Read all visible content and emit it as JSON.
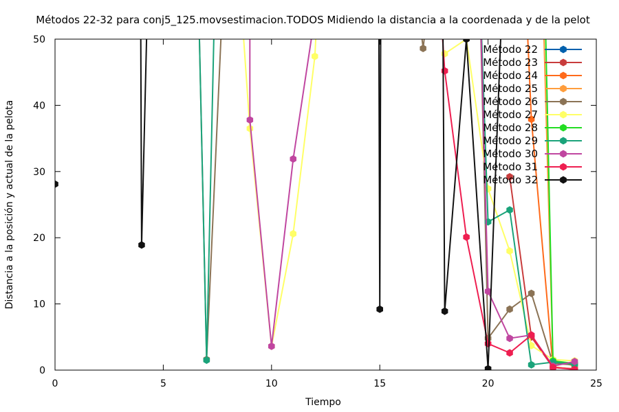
{
  "chart_data": {
    "type": "line",
    "title": "Métodos 22-32 para conj5_125.movsestimacion.TODOS Midiendo la distancia a la coordenada y de la pelot",
    "xlabel": "Tiempo",
    "ylabel": "Distancia a la posición y actual de la pelota",
    "xlim": [
      0,
      25
    ],
    "ylim": [
      0,
      50
    ],
    "xticks": [
      0,
      5,
      10,
      15,
      20,
      25
    ],
    "yticks": [
      0,
      10,
      20,
      30,
      40,
      50
    ],
    "grid": false,
    "legend_position": "top-right",
    "series": [
      {
        "name": "Método 22",
        "color": "#0060ad",
        "points": []
      },
      {
        "name": "Método 23",
        "color": "#c83c3c",
        "points": [
          [
            21,
            29.2
          ],
          [
            22,
            5.0
          ],
          [
            23,
            0.4
          ],
          [
            24,
            0.2
          ]
        ]
      },
      {
        "name": "Método 24",
        "color": "#ff6a1a",
        "points": [
          [
            21.7,
            60.0
          ],
          [
            22,
            37.9
          ],
          [
            23,
            0.5
          ],
          [
            24,
            0.1
          ]
        ]
      },
      {
        "name": "Método 25",
        "color": "#ff9d3c",
        "points": [
          [
            22.5,
            60.0
          ],
          [
            23,
            1.5
          ],
          [
            24,
            0.6
          ]
        ]
      },
      {
        "name": "Método 26",
        "color": "#8b7355",
        "points": [
          [
            6.6,
            60.0
          ],
          [
            7,
            1.6
          ],
          [
            7.8,
            60.0
          ],
          [
            null,
            null
          ],
          [
            16.6,
            60.0
          ],
          [
            17,
            48.6
          ],
          [
            17.4,
            60.0
          ],
          [
            null,
            null
          ],
          [
            19.6,
            60.0
          ],
          [
            20,
            4.8
          ],
          [
            21,
            9.2
          ],
          [
            22,
            11.6
          ],
          [
            23,
            1.0
          ],
          [
            24,
            0.8
          ]
        ]
      },
      {
        "name": "Método 27",
        "color": "#ffff66",
        "points": [
          [
            8.5,
            60.0
          ],
          [
            9,
            36.5
          ],
          [
            10,
            3.6
          ],
          [
            11,
            20.6
          ],
          [
            12,
            47.4
          ],
          [
            12.2,
            60.0
          ],
          [
            null,
            null
          ],
          [
            18,
            47.8
          ],
          [
            19,
            50.0
          ],
          [
            20,
            27.4
          ],
          [
            21,
            18.0
          ],
          [
            22,
            3.7
          ],
          [
            23,
            1.6
          ],
          [
            24,
            1.4
          ]
        ]
      },
      {
        "name": "Método 28",
        "color": "#22dd22",
        "points": [
          [
            22.6,
            60.0
          ],
          [
            23,
            1.4
          ],
          [
            24,
            1.0
          ]
        ]
      },
      {
        "name": "Método 29",
        "color": "#1aa37a",
        "points": [
          [
            6.6,
            60.0
          ],
          [
            7,
            1.5
          ],
          [
            7.4,
            60.0
          ],
          [
            null,
            null
          ],
          [
            19.6,
            60.0
          ],
          [
            20,
            22.4
          ],
          [
            21,
            24.2
          ],
          [
            22,
            0.8
          ],
          [
            23,
            1.2
          ],
          [
            24,
            0.9
          ]
        ]
      },
      {
        "name": "Método 30",
        "color": "#c046a0",
        "points": [
          [
            9,
            60.0
          ],
          [
            9,
            37.8
          ],
          [
            10,
            3.6
          ],
          [
            11,
            31.9
          ],
          [
            12.3,
            60.0
          ],
          [
            null,
            null
          ],
          [
            19.6,
            60.0
          ],
          [
            20,
            11.9
          ],
          [
            21,
            4.8
          ],
          [
            22,
            5.3
          ],
          [
            23,
            0.6
          ],
          [
            24,
            1.3
          ]
        ]
      },
      {
        "name": "Método 31",
        "color": "#ee1e50",
        "points": [
          [
            17.7,
            60.0
          ],
          [
            18,
            45.2
          ],
          [
            19,
            20.1
          ],
          [
            20,
            4.0
          ],
          [
            21,
            2.6
          ],
          [
            22,
            5.3
          ],
          [
            23,
            0.4
          ],
          [
            24,
            0.1
          ]
        ]
      },
      {
        "name": "Método 32",
        "color": "#111111",
        "points": [
          [
            0,
            28.1
          ],
          [
            null,
            null
          ],
          [
            3.95,
            60.0
          ],
          [
            4,
            18.9
          ],
          [
            4.3,
            60.0
          ],
          [
            null,
            null
          ],
          [
            14.95,
            60.0
          ],
          [
            15,
            9.2
          ],
          [
            15.05,
            60.0
          ],
          [
            null,
            null
          ],
          [
            17.9,
            60.0
          ],
          [
            18,
            8.9
          ],
          [
            19,
            50.0
          ],
          [
            20,
            0.2
          ],
          [
            20.7,
            60.0
          ]
        ]
      }
    ]
  }
}
